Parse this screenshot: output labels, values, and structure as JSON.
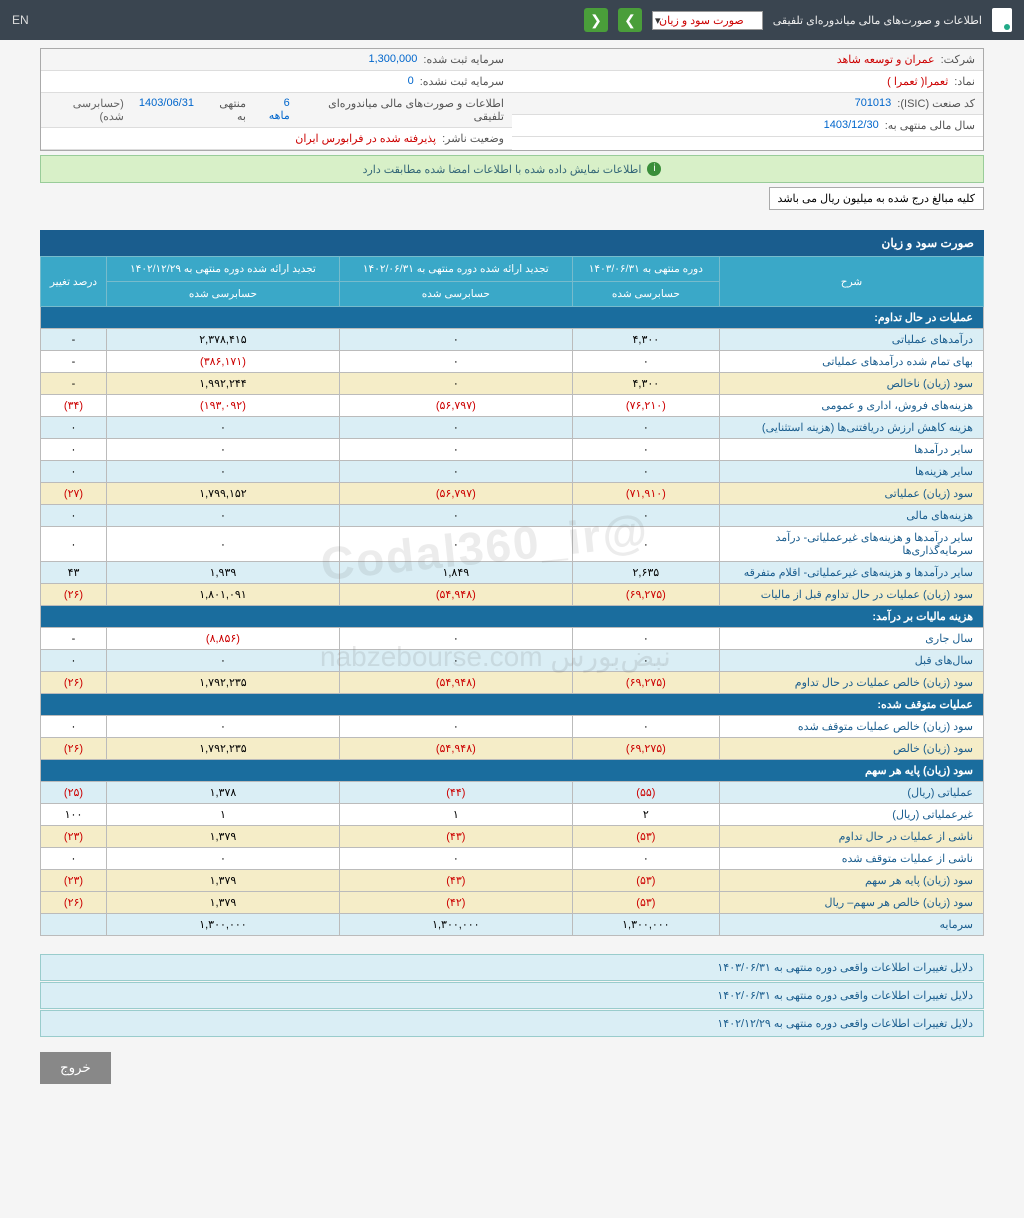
{
  "topbar": {
    "title": "اطلاعات و صورت‌های مالی میاندوره‌ای تلفیقی",
    "dropdown": "صورت سود و زیان",
    "lang": "EN"
  },
  "info": {
    "company_lbl": "شرکت:",
    "company": "عمران و توسعه شاهد",
    "symbol_lbl": "نماد:",
    "symbol": "ثعمرا( ثعمرا )",
    "isic_lbl": "کد صنعت (ISIC):",
    "isic": "701013",
    "year_lbl": "سال مالی منتهی به:",
    "year": "1403/12/30",
    "cap_reg_lbl": "سرمایه ثبت شده:",
    "cap_reg": "1,300,000",
    "cap_unreg_lbl": "سرمایه ثبت نشده:",
    "cap_unreg": "0",
    "stmt_lbl": "اطلاعات و صورت‌های مالی میاندوره‌ای تلفیقی",
    "period": "6 ماهه",
    "ending": "منتهی به",
    "date": "1403/06/31",
    "status": "(حسابرسی شده)",
    "issuer_lbl": "وضعیت ناشر:",
    "issuer": "پذیرفته شده در فرابورس ایران"
  },
  "match_msg": "اطلاعات نمایش داده شده با اطلاعات امضا شده مطابقت دارد",
  "note": "کلیه مبالغ درج شده به میلیون ریال می باشد",
  "tbl_title": "صورت سود و زیان",
  "cols": {
    "desc": "شرح",
    "c1": "دوره منتهی به ۱۴۰۳/۰۶/۳۱",
    "c2": "تجدید ارائه شده دوره منتهی به ۱۴۰۲/۰۶/۳۱",
    "c3": "تجدید ارائه شده دوره منتهی به ۱۴۰۲/۱۲/۲۹",
    "c4": "درصد تغییر",
    "sub": "حسابرسی شده"
  },
  "sections": {
    "s1": "عملیات در حال تداوم:",
    "s2": "هزینه مالیات بر درآمد:",
    "s3": "عملیات متوقف شده:",
    "s4": "سود (زیان) پایه هر سهم"
  },
  "rows": [
    {
      "d": "درآمدهای عملیاتی",
      "v": [
        "۴,۳۰۰",
        "۰",
        "۲,۳۷۸,۴۱۵",
        "-"
      ],
      "cls": "alt"
    },
    {
      "d": "بهای تمام شده درآمدهای عملیاتی",
      "v": [
        "۰",
        "۰",
        "(۳۸۶,۱۷۱)",
        "-"
      ],
      "neg": [
        0,
        0,
        1,
        0
      ]
    },
    {
      "d": "سود (زیان) ناخالص",
      "v": [
        "۴,۳۰۰",
        "۰",
        "۱,۹۹۲,۲۴۴",
        "-"
      ],
      "cls": "sub"
    },
    {
      "d": "هزینه‌های فروش، اداری و عمومی",
      "v": [
        "(۷۶,۲۱۰)",
        "(۵۶,۷۹۷)",
        "(۱۹۳,۰۹۲)",
        "(۳۴)"
      ],
      "neg": [
        1,
        1,
        1,
        1
      ]
    },
    {
      "d": "هزینه کاهش ارزش دریافتنی‌ها (هزینه استثنایی)",
      "v": [
        "۰",
        "۰",
        "۰",
        "۰"
      ],
      "cls": "alt"
    },
    {
      "d": "سایر درآمدها",
      "v": [
        "۰",
        "۰",
        "۰",
        "۰"
      ]
    },
    {
      "d": "سایر هزینه‌ها",
      "v": [
        "۰",
        "۰",
        "۰",
        "۰"
      ],
      "cls": "alt"
    },
    {
      "d": "سود (زیان) عملیاتی",
      "v": [
        "(۷۱,۹۱۰)",
        "(۵۶,۷۹۷)",
        "۱,۷۹۹,۱۵۲",
        "(۲۷)"
      ],
      "cls": "sub",
      "neg": [
        1,
        1,
        0,
        1
      ]
    },
    {
      "d": "هزینه‌های مالی",
      "v": [
        "۰",
        "۰",
        "۰",
        "۰"
      ],
      "cls": "alt"
    },
    {
      "d": "سایر درآمدها و هزینه‌های غیرعملیاتی- درآمد سرمایه‌گذاری‌ها",
      "v": [
        "۰",
        "۰",
        "۰",
        "۰"
      ]
    },
    {
      "d": "سایر درآمدها و هزینه‌های غیرعملیاتی- اقلام متفرقه",
      "v": [
        "۲,۶۳۵",
        "۱,۸۴۹",
        "۱,۹۳۹",
        "۴۳"
      ],
      "cls": "alt"
    },
    {
      "d": "سود (زیان) عملیات در حال تداوم قبل از مالیات",
      "v": [
        "(۶۹,۲۷۵)",
        "(۵۴,۹۴۸)",
        "۱,۸۰۱,۰۹۱",
        "(۲۶)"
      ],
      "cls": "sub",
      "neg": [
        1,
        1,
        0,
        1
      ]
    }
  ],
  "rows2": [
    {
      "d": "سال جاری",
      "v": [
        "۰",
        "۰",
        "(۸,۸۵۶)",
        "-"
      ],
      "neg": [
        0,
        0,
        1,
        0
      ]
    },
    {
      "d": "سال‌های قبل",
      "v": [
        "۰",
        "۰",
        "۰",
        "۰"
      ],
      "cls": "alt"
    },
    {
      "d": "سود (زیان) خالص عملیات در حال تداوم",
      "v": [
        "(۶۹,۲۷۵)",
        "(۵۴,۹۴۸)",
        "۱,۷۹۲,۲۳۵",
        "(۲۶)"
      ],
      "cls": "sub",
      "neg": [
        1,
        1,
        0,
        1
      ]
    }
  ],
  "rows3": [
    {
      "d": "سود (زیان) خالص عملیات متوقف شده",
      "v": [
        "۰",
        "۰",
        "۰",
        "۰"
      ]
    },
    {
      "d": "سود (زیان) خالص",
      "v": [
        "(۶۹,۲۷۵)",
        "(۵۴,۹۴۸)",
        "۱,۷۹۲,۲۳۵",
        "(۲۶)"
      ],
      "cls": "sub",
      "neg": [
        1,
        1,
        0,
        1
      ]
    }
  ],
  "rows4": [
    {
      "d": "عملیاتی (ریال)",
      "v": [
        "(۵۵)",
        "(۴۴)",
        "۱,۳۷۸",
        "(۲۵)"
      ],
      "cls": "alt",
      "neg": [
        1,
        1,
        0,
        1
      ]
    },
    {
      "d": "غیرعملیاتی (ریال)",
      "v": [
        "۲",
        "۱",
        "۱",
        "۱۰۰"
      ]
    },
    {
      "d": "ناشی از عملیات در حال تداوم",
      "v": [
        "(۵۳)",
        "(۴۳)",
        "۱,۳۷۹",
        "(۲۳)"
      ],
      "cls": "sub",
      "neg": [
        1,
        1,
        0,
        1
      ]
    },
    {
      "d": "ناشی از عملیات متوقف شده",
      "v": [
        "۰",
        "۰",
        "۰",
        "۰"
      ]
    },
    {
      "d": "سود (زیان) پایه هر سهم",
      "v": [
        "(۵۳)",
        "(۴۳)",
        "۱,۳۷۹",
        "(۲۳)"
      ],
      "cls": "sub",
      "neg": [
        1,
        1,
        0,
        1
      ]
    },
    {
      "d": "سود (زیان) خالص هر سهم– ریال",
      "v": [
        "(۵۳)",
        "(۴۲)",
        "۱,۳۷۹",
        "(۲۶)"
      ],
      "cls": "sub",
      "neg": [
        1,
        1,
        0,
        1
      ]
    },
    {
      "d": "سرمایه",
      "v": [
        "۱,۳۰۰,۰۰۰",
        "۱,۳۰۰,۰۰۰",
        "۱,۳۰۰,۰۰۰",
        ""
      ],
      "cls": "alt"
    }
  ],
  "reasons": [
    "دلایل تغییرات اطلاعات واقعی دوره منتهی به ۱۴۰۳/۰۶/۳۱",
    "دلایل تغییرات اطلاعات واقعی دوره منتهی به ۱۴۰۲/۰۶/۳۱",
    "دلایل تغییرات اطلاعات واقعی دوره منتهی به ۱۴۰۲/۱۲/۲۹"
  ],
  "exit": "خروج"
}
